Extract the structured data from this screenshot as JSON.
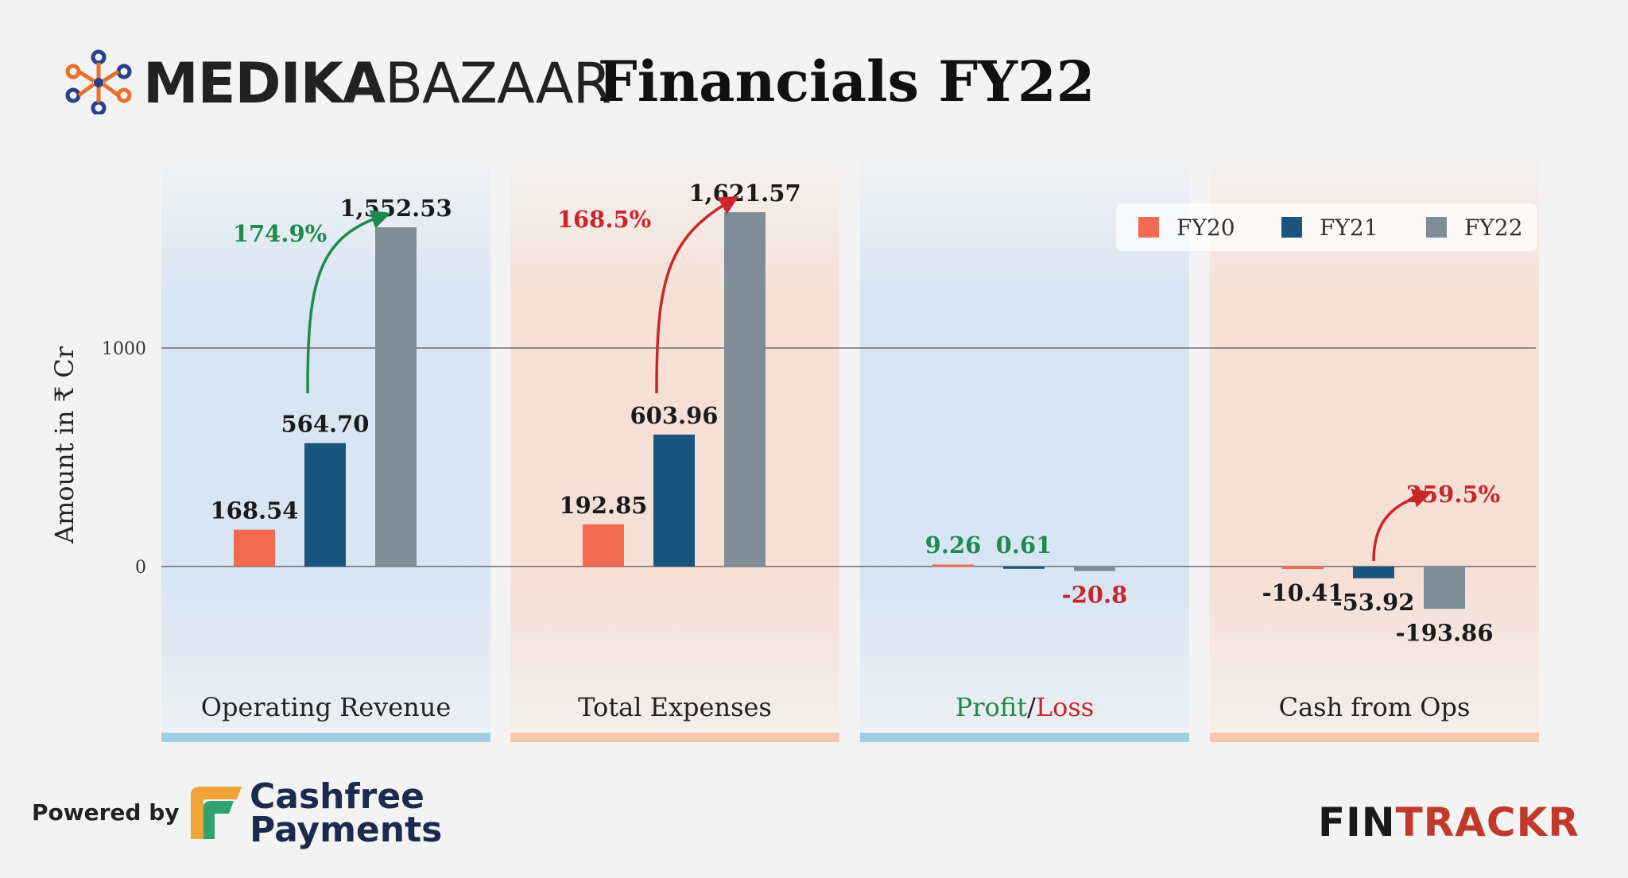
{
  "header": {
    "brand_bold": "MEDIKA",
    "brand_light": "BAZAAR",
    "title": "Financials FY22"
  },
  "colors": {
    "FY20": "#f26b50",
    "FY21": "#1a5580",
    "FY22": "#7f8d96",
    "green": "#1e8a4c",
    "red": "#c8262c",
    "panel_blue": "#d3e3f4",
    "panel_peach": "#f6ddd1",
    "bar_blue": "#9ecde4",
    "bar_peach": "#f7c8b0"
  },
  "footer": {
    "powered_by": "Powered by",
    "cashfree_line1": "Cashfree",
    "cashfree_line2": "Payments",
    "fintrackr_a": "FIN",
    "fintrackr_b": "TRACKR"
  },
  "chart_data": {
    "type": "bar",
    "ylabel": "Amount in ₹ Cr",
    "yticks": [
      0,
      1000
    ],
    "ylim": [
      -430,
      1950
    ],
    "legend": [
      "FY20",
      "FY21",
      "FY22"
    ],
    "legend_position": "top-right",
    "categories": [
      "Operating Revenue",
      "Total Expenses",
      "Profit/Loss",
      "Cash from Ops"
    ],
    "series": [
      {
        "name": "FY20",
        "values": [
          168.54,
          192.85,
          9.26,
          -10.41
        ]
      },
      {
        "name": "FY21",
        "values": [
          564.7,
          603.96,
          0.61,
          -53.92
        ]
      },
      {
        "name": "FY22",
        "values": [
          1552.53,
          1621.57,
          -20.8,
          -193.86
        ]
      }
    ],
    "value_labels": [
      [
        "168.54",
        "564.70",
        "1,552.53"
      ],
      [
        "192.85",
        "603.96",
        "1,621.57"
      ],
      [
        "9.26",
        "0.61",
        "-20.8"
      ],
      [
        "-10.41",
        "-53.92",
        "-193.86"
      ]
    ],
    "category_label_parts": {
      "profit": "Profit",
      "sep": "/",
      "loss": "Loss"
    },
    "growth_annotations": [
      {
        "category": "Operating Revenue",
        "text": "174.9%",
        "color": "green"
      },
      {
        "category": "Total Expenses",
        "text": "168.5%",
        "color": "red"
      },
      {
        "category": "Cash from Ops",
        "text": "259.5%",
        "color": "red"
      }
    ]
  }
}
